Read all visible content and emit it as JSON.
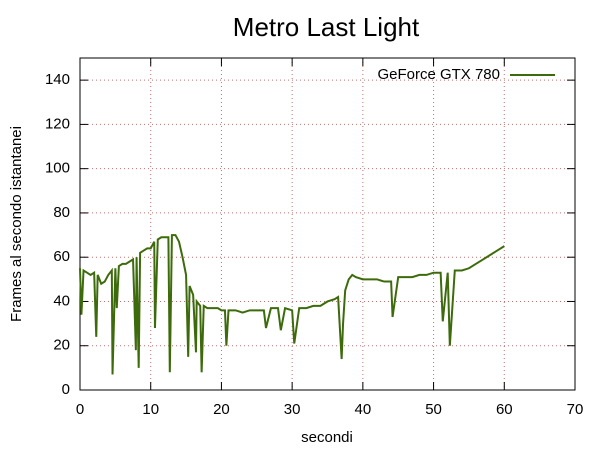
{
  "chart_data": {
    "type": "line",
    "title": "Metro Last Light",
    "xlabel": "secondi",
    "ylabel": "Frames al secondo istantanei",
    "xlim": [
      0,
      70
    ],
    "ylim": [
      0,
      150
    ],
    "xticks": [
      0,
      10,
      20,
      30,
      40,
      50,
      60,
      70
    ],
    "yticks": [
      0,
      20,
      40,
      60,
      80,
      100,
      120,
      140
    ],
    "grid": true,
    "legend": "top-right",
    "x": [
      0,
      0.2,
      0.5,
      1,
      1.5,
      2,
      2.3,
      2.5,
      3,
      3.5,
      4,
      4.5,
      4.6,
      5,
      5.2,
      5.5,
      6,
      6.5,
      7,
      7.5,
      7.9,
      8,
      8.3,
      8.5,
      9,
      9.5,
      10,
      10.5,
      10.6,
      11,
      11.5,
      12,
      12.5,
      12.7,
      13,
      13.5,
      14,
      14.5,
      15,
      15.3,
      15.5,
      16,
      16.4,
      16.5,
      17,
      17.2,
      17.5,
      18,
      18.5,
      19,
      19.5,
      20,
      20.5,
      20.7,
      21,
      22,
      23,
      24,
      25,
      26,
      26.3,
      27,
      28,
      28.4,
      29,
      30,
      30.3,
      31,
      32,
      33,
      34,
      35,
      36,
      36.5,
      37,
      37.2,
      37.5,
      38,
      38.5,
      39,
      40,
      41,
      42,
      43,
      44,
      44.2,
      45,
      46,
      47,
      48,
      49,
      50,
      51,
      51.3,
      52,
      52.3,
      53,
      54,
      55,
      56,
      57,
      58,
      59,
      60
    ],
    "series": [
      {
        "name": "GeForce GTX 780",
        "color": "#3d6b0c",
        "values": [
          55,
          34,
          54,
          53,
          52,
          53,
          24,
          52,
          48,
          49,
          52,
          54,
          7,
          55,
          37,
          56,
          57,
          57,
          58,
          59,
          18,
          60,
          10,
          62,
          63,
          64,
          64,
          67,
          28,
          68,
          69,
          69,
          69,
          8,
          70,
          70,
          67,
          60,
          52,
          15,
          47,
          43,
          17,
          40,
          38,
          8,
          38,
          37,
          37,
          37,
          37,
          36,
          36,
          20,
          36,
          36,
          35,
          36,
          36,
          36,
          28,
          37,
          37,
          27,
          37,
          36,
          21,
          37,
          37,
          38,
          38,
          40,
          41,
          42,
          14,
          30,
          45,
          50,
          52,
          51,
          50,
          50,
          50,
          49,
          49,
          33,
          51,
          51,
          51,
          52,
          52,
          53,
          53,
          31,
          53,
          20,
          54,
          54,
          55,
          57,
          59,
          61,
          63,
          65
        ]
      }
    ]
  }
}
